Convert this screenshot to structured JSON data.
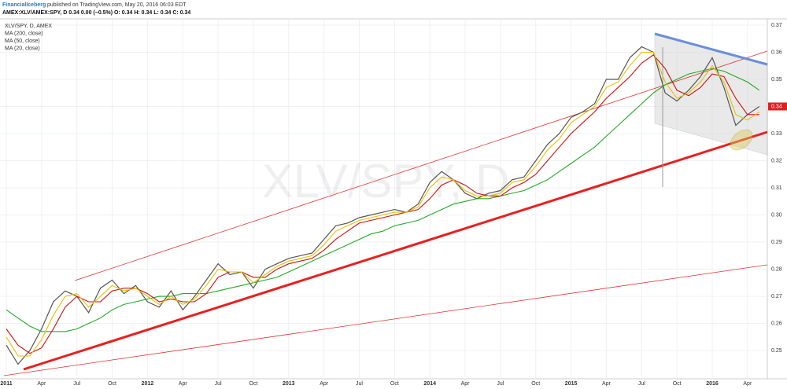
{
  "header": {
    "author": "FinancialIceberg",
    "published": "published on TradingView.com, May 20, 2016 06:03 EDT",
    "quote": "AMEX:XLV/AMEX:SPY, D  0.34 0.00 (−0.5%)  O: 0.34 H: 0.34 L: 0.34 C: 0.34"
  },
  "chart_data": {
    "type": "line",
    "title": "XLV/SPY, D, AMEX",
    "watermark": "XLV/SPY, D",
    "x": [
      "2011-01",
      "2011-02",
      "2011-03",
      "2011-04",
      "2011-05",
      "2011-06",
      "2011-07",
      "2011-08",
      "2011-09",
      "2011-10",
      "2011-11",
      "2011-12",
      "2012-01",
      "2012-02",
      "2012-03",
      "2012-04",
      "2012-05",
      "2012-06",
      "2012-07",
      "2012-08",
      "2012-09",
      "2012-10",
      "2012-11",
      "2012-12",
      "2013-01",
      "2013-02",
      "2013-03",
      "2013-04",
      "2013-05",
      "2013-06",
      "2013-07",
      "2013-08",
      "2013-09",
      "2013-10",
      "2013-11",
      "2013-12",
      "2014-01",
      "2014-02",
      "2014-03",
      "2014-04",
      "2014-05",
      "2014-06",
      "2014-07",
      "2014-08",
      "2014-09",
      "2014-10",
      "2014-11",
      "2014-12",
      "2015-01",
      "2015-02",
      "2015-03",
      "2015-04",
      "2015-05",
      "2015-06",
      "2015-07",
      "2015-08",
      "2015-09",
      "2015-10",
      "2015-11",
      "2015-12",
      "2016-01",
      "2016-02",
      "2016-03",
      "2016-04",
      "2016-05"
    ],
    "series": [
      {
        "color": "#555555",
        "values": [
          0.252,
          0.245,
          0.25,
          0.258,
          0.268,
          0.272,
          0.27,
          0.264,
          0.273,
          0.276,
          0.271,
          0.274,
          0.268,
          0.266,
          0.272,
          0.265,
          0.27,
          0.276,
          0.282,
          0.278,
          0.279,
          0.273,
          0.28,
          0.282,
          0.284,
          0.285,
          0.286,
          0.291,
          0.296,
          0.297,
          0.299,
          0.3,
          0.301,
          0.302,
          0.301,
          0.304,
          0.312,
          0.316,
          0.313,
          0.308,
          0.306,
          0.308,
          0.309,
          0.313,
          0.314,
          0.32,
          0.326,
          0.33,
          0.336,
          0.338,
          0.341,
          0.35,
          0.35,
          0.358,
          0.362,
          0.36,
          0.345,
          0.342,
          0.346,
          0.351,
          0.358,
          0.347,
          0.333,
          0.337,
          0.34
        ]
      },
      {
        "name": "MA (200, close)",
        "color": "#22aa22",
        "values": [
          0.265,
          0.262,
          0.259,
          0.257,
          0.257,
          0.257,
          0.258,
          0.26,
          0.262,
          0.265,
          0.267,
          0.268,
          0.269,
          0.27,
          0.27,
          0.271,
          0.271,
          0.271,
          0.272,
          0.273,
          0.274,
          0.275,
          0.276,
          0.277,
          0.279,
          0.281,
          0.283,
          0.285,
          0.287,
          0.289,
          0.291,
          0.293,
          0.294,
          0.296,
          0.297,
          0.298,
          0.3,
          0.302,
          0.304,
          0.305,
          0.306,
          0.306,
          0.307,
          0.308,
          0.309,
          0.311,
          0.313,
          0.316,
          0.319,
          0.322,
          0.325,
          0.329,
          0.333,
          0.337,
          0.341,
          0.345,
          0.348,
          0.35,
          0.352,
          0.353,
          0.354,
          0.353,
          0.351,
          0.349,
          0.346
        ]
      },
      {
        "name": "MA (50, close)",
        "color": "#cc1111",
        "values": [
          0.258,
          0.252,
          0.249,
          0.251,
          0.258,
          0.266,
          0.27,
          0.268,
          0.268,
          0.272,
          0.273,
          0.273,
          0.271,
          0.268,
          0.269,
          0.268,
          0.268,
          0.271,
          0.277,
          0.279,
          0.279,
          0.277,
          0.277,
          0.28,
          0.282,
          0.283,
          0.284,
          0.287,
          0.291,
          0.294,
          0.297,
          0.298,
          0.299,
          0.3,
          0.301,
          0.302,
          0.306,
          0.311,
          0.313,
          0.311,
          0.308,
          0.307,
          0.307,
          0.31,
          0.312,
          0.315,
          0.32,
          0.325,
          0.33,
          0.334,
          0.338,
          0.343,
          0.347,
          0.351,
          0.356,
          0.359,
          0.354,
          0.346,
          0.344,
          0.347,
          0.352,
          0.351,
          0.343,
          0.337,
          0.337
        ]
      },
      {
        "name": "MA (20, close)",
        "color": "#e8c000",
        "values": [
          0.255,
          0.248,
          0.248,
          0.254,
          0.263,
          0.27,
          0.271,
          0.266,
          0.27,
          0.274,
          0.272,
          0.273,
          0.27,
          0.267,
          0.27,
          0.267,
          0.269,
          0.274,
          0.28,
          0.279,
          0.279,
          0.275,
          0.278,
          0.281,
          0.283,
          0.284,
          0.285,
          0.289,
          0.294,
          0.296,
          0.298,
          0.299,
          0.3,
          0.301,
          0.301,
          0.303,
          0.31,
          0.314,
          0.313,
          0.309,
          0.307,
          0.307,
          0.308,
          0.312,
          0.313,
          0.318,
          0.324,
          0.328,
          0.334,
          0.337,
          0.34,
          0.347,
          0.349,
          0.355,
          0.36,
          0.36,
          0.349,
          0.343,
          0.345,
          0.349,
          0.355,
          0.349,
          0.337,
          0.335,
          0.338
        ]
      }
    ],
    "ylim": [
      0.2396,
      0.3723
    ],
    "yticks": [
      0.25,
      0.26,
      0.27,
      0.28,
      0.29,
      {
        "value": 0.3,
        "label": "0.30"
      },
      0.31,
      0.32,
      0.33,
      0.34,
      0.35,
      0.36,
      0.37
    ],
    "xticks": [
      {
        "value": "2011-01",
        "label": "2011"
      },
      {
        "value": "2011-04",
        "label": "Apr"
      },
      {
        "value": "2011-07",
        "label": "Jul"
      },
      {
        "value": "2011-10",
        "label": "Oct"
      },
      {
        "value": "2012-01",
        "label": "2012"
      },
      {
        "value": "2012-04",
        "label": "Apr"
      },
      {
        "value": "2012-07",
        "label": "Jul"
      },
      {
        "value": "2012-10",
        "label": "Oct"
      },
      {
        "value": "2013-01",
        "label": "2013"
      },
      {
        "value": "2013-04",
        "label": "Apr"
      },
      {
        "value": "2013-07",
        "label": "Jul"
      },
      {
        "value": "2013-10",
        "label": "Oct"
      },
      {
        "value": "2014-01",
        "label": "2014"
      },
      {
        "value": "2014-04",
        "label": "Apr"
      },
      {
        "value": "2014-07",
        "label": "Jul"
      },
      {
        "value": "2014-10",
        "label": "Oct"
      },
      {
        "value": "2015-01",
        "label": "2015"
      },
      {
        "value": "2015-04",
        "label": "Apr"
      },
      {
        "value": "2015-07",
        "label": "Jul"
      },
      {
        "value": "2015-10",
        "label": "Oct"
      },
      {
        "value": "2016-01",
        "label": "2016"
      },
      {
        "value": "2016-04",
        "label": "Apr"
      }
    ],
    "last_price": 0.34,
    "last_price_color": "#e02020",
    "grid": true
  }
}
